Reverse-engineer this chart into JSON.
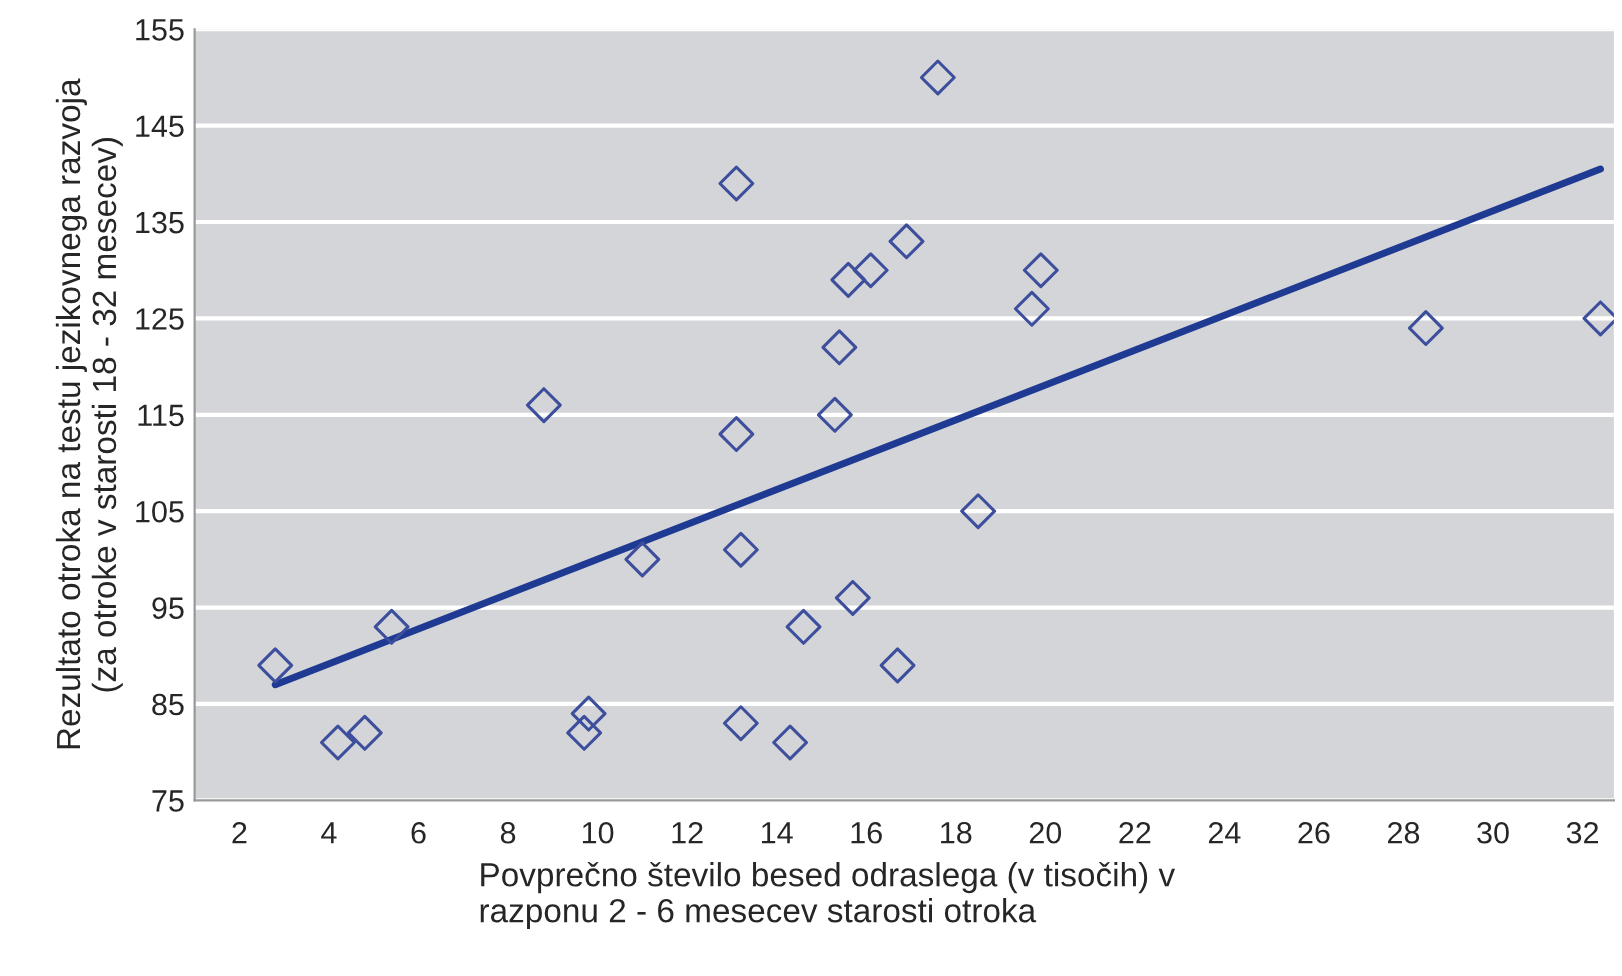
{
  "chart_data": {
    "type": "scatter",
    "xlabel": "Povprečno število besed odraslega (v tisočih) v\nrazponu 2 - 6 mesecev starosti otroka",
    "ylabel": "Rezultato otroka na testu jezikovnega razvoja\n(za otroke v starosti 18 - 32 mesecev)",
    "series": [
      {
        "color": "#3d4f9c",
        "marker": "diamond",
        "x": [
          2.8,
          4.2,
          4.8,
          5.4,
          8.8,
          9.7,
          9.8,
          11,
          13.1,
          13.1,
          13.2,
          13.2,
          14.3,
          14.6,
          15.3,
          15.4,
          15.6,
          15.7,
          16.1,
          16.7,
          16.9,
          17.6,
          18.5,
          19.7,
          19.9,
          28.5,
          32.4
        ],
        "values": [
          89,
          81,
          82,
          93,
          116,
          82,
          84,
          100,
          139,
          113,
          101,
          83,
          81,
          93,
          115,
          122,
          129,
          96,
          130,
          89,
          133,
          150,
          105,
          126,
          130,
          124,
          125
        ]
      },
      {
        "type": "line",
        "color": "#1f3a93",
        "marker": "none",
        "line_style": "solid",
        "x": [
          2.8,
          32.4
        ],
        "values": [
          87,
          140.5
        ]
      }
    ],
    "xlim": [
      1,
      32.7
    ],
    "xticks": [
      2,
      4,
      6,
      8,
      10,
      12,
      14,
      16,
      18,
      20,
      22,
      24,
      26,
      28,
      30,
      32
    ],
    "ylim": [
      75,
      155
    ],
    "yticks": [
      75,
      85,
      95,
      105,
      115,
      125,
      135,
      145,
      155
    ],
    "grid": "y",
    "legend": false
  }
}
